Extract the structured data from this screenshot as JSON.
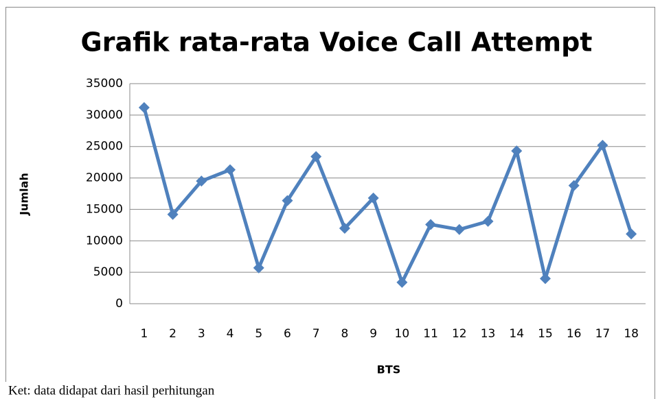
{
  "chart_data": {
    "type": "line",
    "title": "Grafik rata-rata Voice Call Attempt",
    "x_label": "BTS",
    "y_label": "Jumlah",
    "categories": [
      "1",
      "2",
      "3",
      "4",
      "5",
      "6",
      "7",
      "8",
      "9",
      "10",
      "11",
      "12",
      "13",
      "14",
      "15",
      "16",
      "17",
      "18"
    ],
    "series": [
      {
        "name": "Jumlah",
        "color": "#4f81bd",
        "values": [
          31200,
          14200,
          19500,
          21300,
          5700,
          16400,
          23400,
          12000,
          16800,
          3400,
          12600,
          11800,
          13100,
          24300,
          4000,
          18800,
          25200,
          11100
        ]
      }
    ],
    "ylim": [
      0,
      35000
    ],
    "yticks": [
      0,
      5000,
      10000,
      15000,
      20000,
      25000,
      30000,
      35000
    ],
    "grid": true
  },
  "footnote": "Ket: data didapat dari hasil perhitungan"
}
